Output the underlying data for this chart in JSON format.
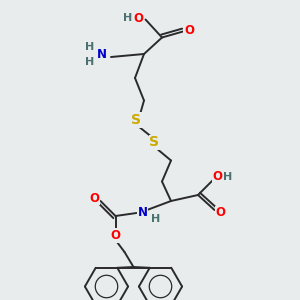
{
  "background_color": "#e8ecec",
  "bond_color": "#2a2a2a",
  "bond_width": 1.4,
  "colors": {
    "O": "#ff0000",
    "N": "#0000cc",
    "S": "#ccaa00",
    "H": "#4a7070"
  },
  "font_size": 8.5,
  "figsize": [
    3.0,
    3.0
  ],
  "dpi": 100
}
